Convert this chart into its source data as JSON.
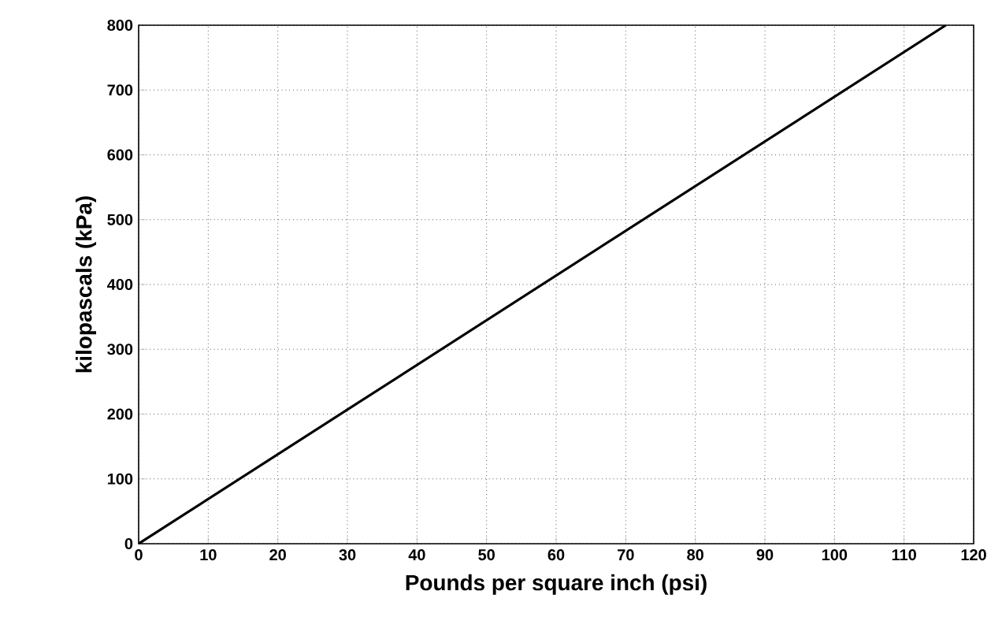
{
  "chart_data": {
    "type": "line",
    "xlabel": "Pounds per square inch (psi)",
    "ylabel": "kilopascals (kPa)",
    "x": [
      0,
      116
    ],
    "series": [
      {
        "color": "#000000",
        "values": [
          0,
          800
        ]
      }
    ],
    "xlim": [
      0,
      120
    ],
    "ylim": [
      0,
      800
    ],
    "xticks": [
      0,
      10,
      20,
      30,
      40,
      50,
      60,
      70,
      80,
      90,
      100,
      110,
      120
    ],
    "yticks": [
      0,
      100,
      200,
      300,
      400,
      500,
      600,
      700,
      800
    ],
    "grid": true,
    "marker": "none",
    "line_style": "solid"
  }
}
